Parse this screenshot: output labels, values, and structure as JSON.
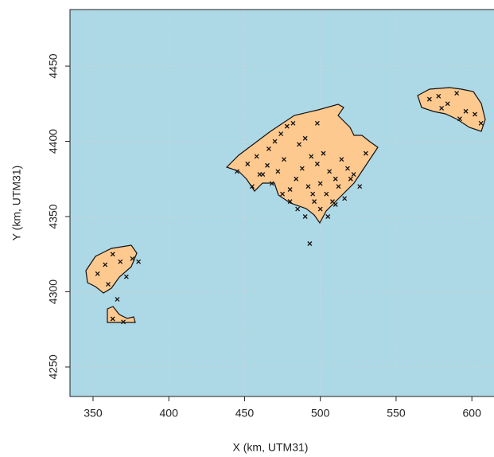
{
  "chart_data": {
    "type": "scatter",
    "xlabel": "X (km, UTM31)",
    "ylabel": "Y (km, UTM31)",
    "xlim": [
      334.8,
      614.6
    ],
    "ylim": [
      4230.4,
      4487.6
    ],
    "xticks": [
      350,
      400,
      450,
      500,
      550,
      600
    ],
    "yticks": [
      4250,
      4300,
      4350,
      4400,
      4450
    ],
    "grid": true,
    "background": "#add8e6",
    "land_color": "#fdc98f",
    "color": "#111111",
    "x": [
      445,
      452,
      458,
      462,
      466,
      470,
      474,
      478,
      482,
      486,
      490,
      494,
      498,
      502,
      506,
      510,
      514,
      518,
      522,
      526,
      530,
      468,
      472,
      476,
      480,
      484,
      488,
      492,
      496,
      500,
      504,
      508,
      512,
      516,
      520,
      480,
      485,
      490,
      495,
      500,
      505,
      510,
      498,
      493,
      455,
      460,
      465,
      475,
      572,
      578,
      584,
      590,
      596,
      602,
      606,
      580,
      592,
      353,
      358,
      363,
      368,
      372,
      376,
      380,
      360,
      366,
      363,
      370
    ],
    "values": [
      4380,
      4385,
      4390,
      4378,
      4395,
      4400,
      4405,
      4410,
      4412,
      4398,
      4402,
      4390,
      4385,
      4392,
      4380,
      4375,
      4388,
      4382,
      4378,
      4370,
      4392,
      4372,
      4380,
      4388,
      4368,
      4375,
      4382,
      4370,
      4360,
      4372,
      4365,
      4360,
      4370,
      4362,
      4375,
      4360,
      4355,
      4350,
      4365,
      4355,
      4350,
      4358,
      4412,
      4332,
      4370,
      4378,
      4384,
      4365,
      4428,
      4430,
      4425,
      4432,
      4420,
      4418,
      4412,
      4422,
      4415,
      4312,
      4318,
      4325,
      4320,
      4310,
      4322,
      4320,
      4305,
      4295,
      4282,
      4280
    ]
  }
}
